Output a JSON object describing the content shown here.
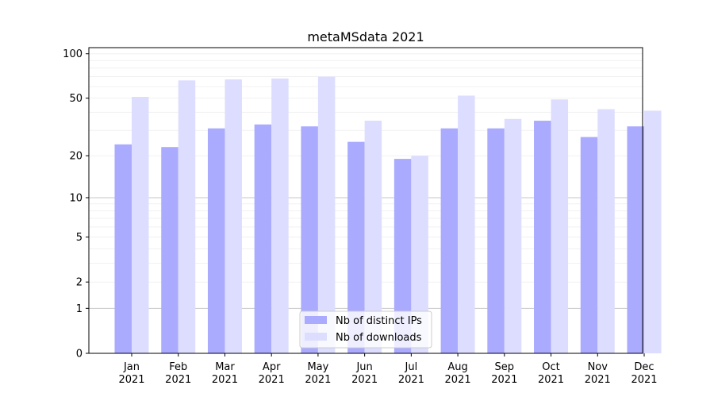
{
  "chart_data": {
    "type": "bar",
    "title": "metaMSdata 2021",
    "xlabel": "",
    "ylabel": "",
    "scale": "log1p",
    "ylim": [
      0,
      110
    ],
    "yticks": [
      0,
      1,
      2,
      5,
      10,
      20,
      50,
      100
    ],
    "categories": [
      "Jan 2021",
      "Feb 2021",
      "Mar 2021",
      "Apr 2021",
      "May 2021",
      "Jun 2021",
      "Jul 2021",
      "Aug 2021",
      "Sep 2021",
      "Oct 2021",
      "Nov 2021",
      "Dec 2021"
    ],
    "category_months": [
      "Jan",
      "Feb",
      "Mar",
      "Apr",
      "May",
      "Jun",
      "Jul",
      "Aug",
      "Sep",
      "Oct",
      "Nov",
      "Dec"
    ],
    "category_year": "2021",
    "series": [
      {
        "name": "Nb of distinct IPs",
        "color": "#aaaaff",
        "values": [
          24,
          23,
          31,
          33,
          32,
          25,
          19,
          31,
          31,
          35,
          27,
          32
        ]
      },
      {
        "name": "Nb of downloads",
        "color": "#ddddff",
        "values": [
          51,
          66,
          67,
          68,
          70,
          35,
          20,
          52,
          36,
          49,
          42,
          41
        ]
      }
    ],
    "legend_position": "lower-center",
    "grid": true
  }
}
